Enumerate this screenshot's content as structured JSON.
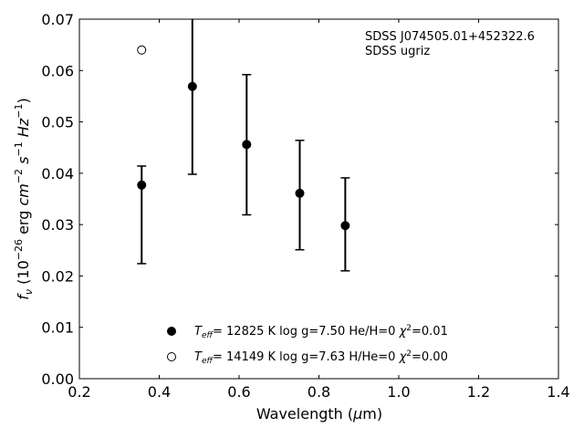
{
  "chart_data": {
    "type": "scatter",
    "xlabel": "Wavelength (μm)",
    "ylabel": "f_ν (10^-26 erg cm^-2 s^-1 Hz^-1)",
    "xlim": [
      0.2,
      1.4
    ],
    "ylim": [
      0.0,
      0.07
    ],
    "xticks": [
      "0.2",
      "0.4",
      "0.6",
      "0.8",
      "1.0",
      "1.2",
      "1.4"
    ],
    "yticks": [
      "0.00",
      "0.01",
      "0.02",
      "0.03",
      "0.04",
      "0.05",
      "0.06",
      "0.07"
    ],
    "annotation": [
      "SDSS J074505.01+452322.6",
      "SDSS ugriz"
    ],
    "series": [
      {
        "name": "T_eff= 12825 K  log g=7.50  He/H=0  χ²=0.01",
        "marker": "filled-circle",
        "color": "#000000",
        "points": [
          {
            "x": 0.356,
            "y": 0.0377,
            "ylo": 0.0224,
            "yhi": 0.0414
          },
          {
            "x": 0.483,
            "y": 0.0569,
            "ylo": 0.0398,
            "yhi": 0.071
          },
          {
            "x": 0.619,
            "y": 0.0456,
            "ylo": 0.0319,
            "yhi": 0.0592
          },
          {
            "x": 0.752,
            "y": 0.0361,
            "ylo": 0.0251,
            "yhi": 0.0464
          },
          {
            "x": 0.866,
            "y": 0.0298,
            "ylo": 0.021,
            "yhi": 0.0391
          }
        ]
      },
      {
        "name": "T_eff= 14149 K  log g=7.63  H/He=0  χ²=0.00",
        "marker": "open-circle",
        "color": "#000000",
        "points": [
          {
            "x": 0.356,
            "y": 0.064
          }
        ]
      }
    ],
    "legend_position": "bottom-center",
    "grid": false
  }
}
